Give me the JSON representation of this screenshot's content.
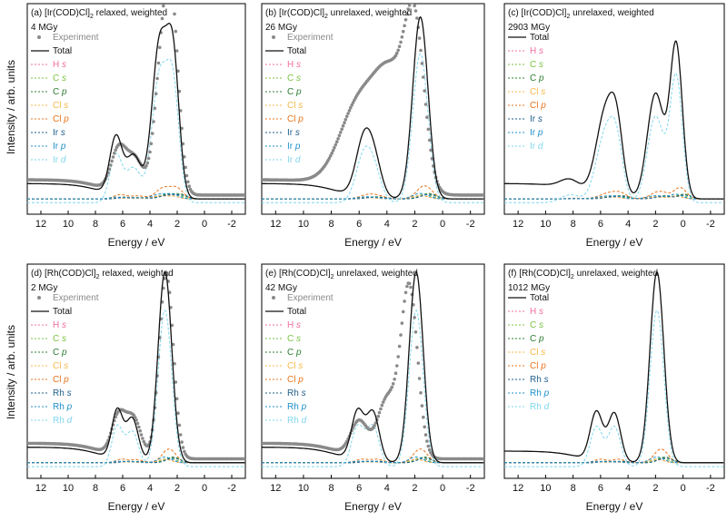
{
  "figure": {
    "ylabel": "Intensity / arb. units",
    "xlabel": "Energy / eV",
    "xlim": [
      13,
      -3
    ],
    "xticks": [
      12,
      10,
      8,
      6,
      4,
      2,
      0,
      -2
    ],
    "xtick_labels": [
      "12",
      "10",
      "8",
      "6",
      "4",
      "2",
      "0",
      "-2"
    ]
  },
  "colors": {
    "experiment": "#8a8a8a",
    "total": "#111111",
    "H_s": "#f06ea0",
    "C_s": "#7cc242",
    "C_p": "#2e7d32",
    "Cl_s": "#f7b84a",
    "Cl_p": "#e8741c",
    "M_s": "#1f5f8b",
    "M_p": "#1f8fc9",
    "M_d": "#7fd6ee"
  },
  "chart_data": [
    {
      "type": "line",
      "panel": "a",
      "title_prefix": "(a) [Ir(COD)Cl]",
      "title_sub": "2",
      "title_suffix": " relaxed, weighted",
      "dose": "4 MGy",
      "has_experiment": true,
      "metal": "Ir",
      "xlim": [
        13,
        -3
      ],
      "ylim": [
        -0.05,
        1.05
      ],
      "peaks": [
        [
          6.5,
          0.3,
          0.45
        ],
        [
          5.2,
          0.22,
          0.55
        ],
        [
          3.3,
          0.8,
          0.55
        ],
        [
          2.3,
          0.7,
          0.45
        ]
      ],
      "experiment_peaks": [
        [
          6.3,
          0.22,
          0.55
        ],
        [
          5.1,
          0.18,
          0.6
        ],
        [
          3.0,
          0.75,
          0.6
        ],
        [
          2.3,
          0.65,
          0.5
        ]
      ],
      "baseline": 0.08,
      "legend": [
        {
          "key": "experiment",
          "label": "Experiment",
          "kind": "dots"
        },
        {
          "key": "total",
          "label": "Total",
          "kind": "solid"
        },
        {
          "key": "H_s",
          "label": "H",
          "orb": "s",
          "kind": "dash"
        },
        {
          "key": "C_s",
          "label": "C",
          "orb": "s",
          "kind": "dash"
        },
        {
          "key": "C_p",
          "label": "C",
          "orb": "p",
          "kind": "dash"
        },
        {
          "key": "Cl_s",
          "label": "Cl",
          "orb": "s",
          "kind": "dash"
        },
        {
          "key": "Cl_p",
          "label": "Cl",
          "orb": "p",
          "kind": "dash"
        },
        {
          "key": "M_s",
          "label": "Ir",
          "orb": "s",
          "kind": "dash"
        },
        {
          "key": "M_p",
          "label": "Ir",
          "orb": "p",
          "kind": "dash"
        },
        {
          "key": "M_d",
          "label": "Ir",
          "orb": "d",
          "kind": "dash"
        }
      ]
    },
    {
      "type": "line",
      "panel": "b",
      "title_prefix": "(b) [Ir(COD)Cl]",
      "title_sub": "2",
      "title_suffix": " unrelaxed, weighted",
      "dose": "26 MGy",
      "has_experiment": true,
      "metal": "Ir",
      "xlim": [
        13,
        -3
      ],
      "ylim": [
        -0.05,
        1.05
      ],
      "peaks": [
        [
          5.6,
          0.32,
          0.6
        ],
        [
          4.8,
          0.12,
          0.5
        ],
        [
          1.6,
          0.95,
          0.55
        ]
      ],
      "experiment_peaks": [
        [
          6.0,
          0.45,
          1.4
        ],
        [
          3.6,
          0.55,
          1.2
        ],
        [
          2.0,
          0.75,
          0.7
        ]
      ],
      "baseline": 0.08,
      "legend": [
        {
          "key": "experiment",
          "label": "Experiment",
          "kind": "dots"
        },
        {
          "key": "total",
          "label": "Total",
          "kind": "solid"
        },
        {
          "key": "H_s",
          "label": "H",
          "orb": "s",
          "kind": "dash"
        },
        {
          "key": "C_s",
          "label": "C",
          "orb": "s",
          "kind": "dash"
        },
        {
          "key": "C_p",
          "label": "C",
          "orb": "p",
          "kind": "dash"
        },
        {
          "key": "Cl_s",
          "label": "Cl",
          "orb": "s",
          "kind": "dash"
        },
        {
          "key": "Cl_p",
          "label": "Cl",
          "orb": "p",
          "kind": "dash"
        },
        {
          "key": "M_s",
          "label": "Ir",
          "orb": "s",
          "kind": "dash"
        },
        {
          "key": "M_p",
          "label": "Ir",
          "orb": "p",
          "kind": "dash"
        },
        {
          "key": "M_d",
          "label": "Ir",
          "orb": "d",
          "kind": "dash"
        }
      ]
    },
    {
      "type": "line",
      "panel": "c",
      "title_prefix": "(c) [Ir(COD)Cl]",
      "title_sub": "2",
      "title_suffix": " unrelaxed, weighted",
      "dose": "2903 MGy",
      "has_experiment": false,
      "metal": "Ir",
      "xlim": [
        13,
        -3
      ],
      "ylim": [
        -0.05,
        1.05
      ],
      "peaks": [
        [
          5.6,
          0.45,
          0.7
        ],
        [
          4.8,
          0.25,
          0.45
        ],
        [
          2.0,
          0.55,
          0.6
        ],
        [
          0.5,
          0.8,
          0.45
        ],
        [
          8.2,
          0.05,
          0.7
        ]
      ],
      "baseline": 0.08,
      "legend": [
        {
          "key": "total",
          "label": "Total",
          "kind": "solid"
        },
        {
          "key": "H_s",
          "label": "H",
          "orb": "s",
          "kind": "dash"
        },
        {
          "key": "C_s",
          "label": "C",
          "orb": "s",
          "kind": "dash"
        },
        {
          "key": "C_p",
          "label": "C",
          "orb": "p",
          "kind": "dash"
        },
        {
          "key": "Cl_s",
          "label": "Cl",
          "orb": "s",
          "kind": "dash"
        },
        {
          "key": "Cl_p",
          "label": "Cl",
          "orb": "p",
          "kind": "dash"
        },
        {
          "key": "M_s",
          "label": "Ir",
          "orb": "s",
          "kind": "dash"
        },
        {
          "key": "M_p",
          "label": "Ir",
          "orb": "p",
          "kind": "dash"
        },
        {
          "key": "M_d",
          "label": "Ir",
          "orb": "d",
          "kind": "dash"
        }
      ]
    },
    {
      "type": "line",
      "panel": "d",
      "title_prefix": "(d) [Rh(COD)Cl]",
      "title_sub": "2",
      "title_suffix": " relaxed, weighted",
      "dose": "2 MGy",
      "has_experiment": true,
      "metal": "Rh",
      "xlim": [
        13,
        -3
      ],
      "ylim": [
        -0.05,
        1.05
      ],
      "peaks": [
        [
          6.4,
          0.25,
          0.4
        ],
        [
          5.3,
          0.22,
          0.45
        ],
        [
          2.9,
          0.98,
          0.5
        ]
      ],
      "experiment_peaks": [
        [
          6.3,
          0.2,
          0.5
        ],
        [
          5.2,
          0.2,
          0.55
        ],
        [
          2.8,
          0.95,
          0.52
        ]
      ],
      "baseline": 0.08,
      "legend": [
        {
          "key": "experiment",
          "label": "Experiment",
          "kind": "dots"
        },
        {
          "key": "total",
          "label": "Total",
          "kind": "solid"
        },
        {
          "key": "H_s",
          "label": "H",
          "orb": "s",
          "kind": "dash"
        },
        {
          "key": "C_s",
          "label": "C",
          "orb": "s",
          "kind": "dash"
        },
        {
          "key": "C_p",
          "label": "C",
          "orb": "p",
          "kind": "dash"
        },
        {
          "key": "Cl_s",
          "label": "Cl",
          "orb": "s",
          "kind": "dash"
        },
        {
          "key": "Cl_p",
          "label": "Cl",
          "orb": "p",
          "kind": "dash"
        },
        {
          "key": "M_s",
          "label": "Rh",
          "orb": "s",
          "kind": "dash"
        },
        {
          "key": "M_p",
          "label": "Rh",
          "orb": "p",
          "kind": "dash"
        },
        {
          "key": "M_d",
          "label": "Rh",
          "orb": "d",
          "kind": "dash"
        }
      ]
    },
    {
      "type": "line",
      "panel": "e",
      "title_prefix": "(e) [Rh(COD)Cl]",
      "title_sub": "2",
      "title_suffix": " unrelaxed, weighted",
      "dose": "42 MGy",
      "has_experiment": true,
      "metal": "Rh",
      "xlim": [
        13,
        -3
      ],
      "ylim": [
        -0.05,
        1.05
      ],
      "peaks": [
        [
          6.1,
          0.25,
          0.45
        ],
        [
          5.0,
          0.25,
          0.45
        ],
        [
          1.9,
          0.98,
          0.5
        ]
      ],
      "experiment_peaks": [
        [
          6.0,
          0.18,
          0.6
        ],
        [
          4.0,
          0.3,
          0.7
        ],
        [
          2.4,
          0.88,
          0.6
        ]
      ],
      "baseline": 0.08,
      "legend": [
        {
          "key": "experiment",
          "label": "Experiment",
          "kind": "dots"
        },
        {
          "key": "total",
          "label": "Total",
          "kind": "solid"
        },
        {
          "key": "H_s",
          "label": "H",
          "orb": "s",
          "kind": "dash"
        },
        {
          "key": "C_s",
          "label": "C",
          "orb": "s",
          "kind": "dash"
        },
        {
          "key": "C_p",
          "label": "C",
          "orb": "p",
          "kind": "dash"
        },
        {
          "key": "Cl_s",
          "label": "Cl",
          "orb": "s",
          "kind": "dash"
        },
        {
          "key": "Cl_p",
          "label": "Cl",
          "orb": "p",
          "kind": "dash"
        },
        {
          "key": "M_s",
          "label": "Rh",
          "orb": "s",
          "kind": "dash"
        },
        {
          "key": "M_p",
          "label": "Rh",
          "orb": "p",
          "kind": "dash"
        },
        {
          "key": "M_d",
          "label": "Rh",
          "orb": "d",
          "kind": "dash"
        }
      ]
    },
    {
      "type": "line",
      "panel": "f",
      "title_prefix": "(f) [Rh(COD)Cl]",
      "title_sub": "2",
      "title_suffix": " unrelaxed, weighted",
      "dose": "1012 MGy",
      "has_experiment": false,
      "metal": "Rh",
      "xlim": [
        13,
        -3
      ],
      "ylim": [
        -0.05,
        1.05
      ],
      "peaks": [
        [
          6.3,
          0.25,
          0.45
        ],
        [
          5.0,
          0.25,
          0.45
        ],
        [
          1.9,
          0.98,
          0.5
        ]
      ],
      "baseline": 0.06,
      "legend": [
        {
          "key": "total",
          "label": "Total",
          "kind": "solid"
        },
        {
          "key": "H_s",
          "label": "H",
          "orb": "s",
          "kind": "dash"
        },
        {
          "key": "C_s",
          "label": "C",
          "orb": "s",
          "kind": "dash"
        },
        {
          "key": "C_p",
          "label": "C",
          "orb": "p",
          "kind": "dash"
        },
        {
          "key": "Cl_s",
          "label": "Cl",
          "orb": "s",
          "kind": "dash"
        },
        {
          "key": "Cl_p",
          "label": "Cl",
          "orb": "p",
          "kind": "dash"
        },
        {
          "key": "M_s",
          "label": "Rh",
          "orb": "s",
          "kind": "dash"
        },
        {
          "key": "M_p",
          "label": "Rh",
          "orb": "p",
          "kind": "dash"
        },
        {
          "key": "M_d",
          "label": "Rh",
          "orb": "d",
          "kind": "dash"
        }
      ]
    }
  ]
}
